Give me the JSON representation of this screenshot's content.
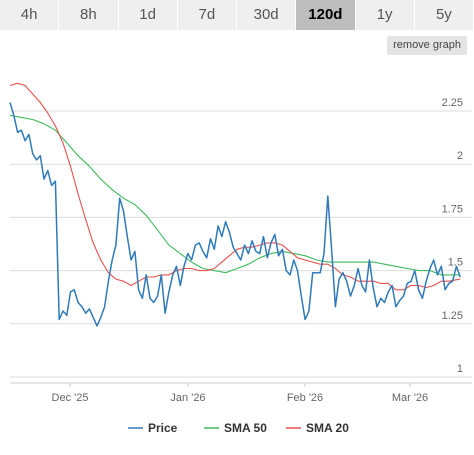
{
  "tabs": [
    {
      "label": "4h",
      "active": false
    },
    {
      "label": "8h",
      "active": false
    },
    {
      "label": "1d",
      "active": false
    },
    {
      "label": "7d",
      "active": false
    },
    {
      "label": "30d",
      "active": false
    },
    {
      "label": "120d",
      "active": true
    },
    {
      "label": "1y",
      "active": false
    },
    {
      "label": "5y",
      "active": false
    }
  ],
  "remove_graph_label": "remove graph",
  "chart_data": {
    "type": "line",
    "title": "",
    "xlabel": "",
    "ylabel": "",
    "x_ticks": [
      "Dec '25",
      "Jan '26",
      "Feb '26",
      "Mar '26"
    ],
    "y_ticks": [
      "1",
      "1.25",
      "1.5",
      "1.75",
      "2",
      "2.25"
    ],
    "ylim": [
      1,
      2.4
    ],
    "x_range_days": [
      0,
      120
    ],
    "grid": "horizontal",
    "legend_position": "bottom",
    "series": [
      {
        "name": "Price",
        "color": "#2f7ab9",
        "points": [
          [
            0,
            2.29
          ],
          [
            1,
            2.23
          ],
          [
            2,
            2.15
          ],
          [
            3,
            2.16
          ],
          [
            4,
            2.11
          ],
          [
            5,
            2.14
          ],
          [
            6,
            2.05
          ],
          [
            7,
            2.02
          ],
          [
            8,
            2.04
          ],
          [
            9,
            1.93
          ],
          [
            10,
            1.97
          ],
          [
            11,
            1.9
          ],
          [
            12,
            1.92
          ],
          [
            13,
            1.27
          ],
          [
            14,
            1.31
          ],
          [
            15,
            1.29
          ],
          [
            16,
            1.4
          ],
          [
            17,
            1.41
          ],
          [
            18,
            1.35
          ],
          [
            19,
            1.33
          ],
          [
            20,
            1.3
          ],
          [
            21,
            1.32
          ],
          [
            22,
            1.28
          ],
          [
            23,
            1.24
          ],
          [
            24,
            1.28
          ],
          [
            25,
            1.33
          ],
          [
            26,
            1.45
          ],
          [
            27,
            1.55
          ],
          [
            28,
            1.62
          ],
          [
            29,
            1.84
          ],
          [
            30,
            1.78
          ],
          [
            31,
            1.66
          ],
          [
            32,
            1.55
          ],
          [
            33,
            1.59
          ],
          [
            34,
            1.41
          ],
          [
            35,
            1.37
          ],
          [
            36,
            1.48
          ],
          [
            37,
            1.37
          ],
          [
            38,
            1.35
          ],
          [
            39,
            1.38
          ],
          [
            40,
            1.48
          ],
          [
            41,
            1.3
          ],
          [
            42,
            1.4
          ],
          [
            43,
            1.48
          ],
          [
            44,
            1.52
          ],
          [
            45,
            1.43
          ],
          [
            46,
            1.52
          ],
          [
            47,
            1.58
          ],
          [
            48,
            1.55
          ],
          [
            49,
            1.62
          ],
          [
            50,
            1.63
          ],
          [
            51,
            1.59
          ],
          [
            52,
            1.56
          ],
          [
            53,
            1.65
          ],
          [
            54,
            1.6
          ],
          [
            55,
            1.71
          ],
          [
            56,
            1.66
          ],
          [
            57,
            1.73
          ],
          [
            58,
            1.68
          ],
          [
            59,
            1.61
          ],
          [
            60,
            1.58
          ],
          [
            61,
            1.55
          ],
          [
            62,
            1.62
          ],
          [
            63,
            1.58
          ],
          [
            64,
            1.64
          ],
          [
            65,
            1.59
          ],
          [
            66,
            1.58
          ],
          [
            67,
            1.66
          ],
          [
            68,
            1.56
          ],
          [
            69,
            1.63
          ],
          [
            70,
            1.67
          ],
          [
            71,
            1.57
          ],
          [
            72,
            1.6
          ],
          [
            73,
            1.5
          ],
          [
            74,
            1.48
          ],
          [
            75,
            1.55
          ],
          [
            76,
            1.5
          ],
          [
            77,
            1.38
          ],
          [
            78,
            1.27
          ],
          [
            79,
            1.31
          ],
          [
            80,
            1.49
          ],
          [
            81,
            1.49
          ],
          [
            82,
            1.49
          ],
          [
            83,
            1.58
          ],
          [
            84,
            1.85
          ],
          [
            85,
            1.6
          ],
          [
            86,
            1.33
          ],
          [
            87,
            1.46
          ],
          [
            88,
            1.49
          ],
          [
            89,
            1.45
          ],
          [
            90,
            1.38
          ],
          [
            91,
            1.43
          ],
          [
            92,
            1.51
          ],
          [
            93,
            1.43
          ],
          [
            94,
            1.4
          ],
          [
            95,
            1.55
          ],
          [
            96,
            1.42
          ],
          [
            97,
            1.33
          ],
          [
            98,
            1.37
          ],
          [
            99,
            1.35
          ],
          [
            100,
            1.4
          ],
          [
            101,
            1.43
          ],
          [
            102,
            1.33
          ],
          [
            103,
            1.36
          ],
          [
            104,
            1.38
          ],
          [
            105,
            1.44
          ],
          [
            106,
            1.45
          ],
          [
            107,
            1.5
          ],
          [
            108,
            1.41
          ],
          [
            109,
            1.37
          ],
          [
            110,
            1.45
          ],
          [
            111,
            1.51
          ],
          [
            112,
            1.55
          ],
          [
            113,
            1.48
          ],
          [
            114,
            1.52
          ],
          [
            115,
            1.41
          ],
          [
            116,
            1.44
          ],
          [
            117,
            1.45
          ],
          [
            118,
            1.52
          ],
          [
            119,
            1.47
          ]
        ]
      },
      {
        "name": "SMA 50",
        "color": "#3dbb5e",
        "points": [
          [
            0,
            2.23
          ],
          [
            3,
            2.22
          ],
          [
            6,
            2.21
          ],
          [
            9,
            2.19
          ],
          [
            12,
            2.16
          ],
          [
            15,
            2.1
          ],
          [
            18,
            2.04
          ],
          [
            21,
            1.99
          ],
          [
            24,
            1.93
          ],
          [
            27,
            1.88
          ],
          [
            30,
            1.84
          ],
          [
            33,
            1.81
          ],
          [
            36,
            1.76
          ],
          [
            39,
            1.69
          ],
          [
            42,
            1.62
          ],
          [
            45,
            1.58
          ],
          [
            48,
            1.54
          ],
          [
            51,
            1.51
          ],
          [
            54,
            1.5
          ],
          [
            57,
            1.49
          ],
          [
            60,
            1.51
          ],
          [
            63,
            1.53
          ],
          [
            66,
            1.56
          ],
          [
            69,
            1.58
          ],
          [
            72,
            1.59
          ],
          [
            75,
            1.58
          ],
          [
            78,
            1.57
          ],
          [
            81,
            1.55
          ],
          [
            84,
            1.54
          ],
          [
            87,
            1.54
          ],
          [
            90,
            1.54
          ],
          [
            93,
            1.54
          ],
          [
            96,
            1.54
          ],
          [
            99,
            1.53
          ],
          [
            102,
            1.52
          ],
          [
            105,
            1.51
          ],
          [
            108,
            1.5
          ],
          [
            111,
            1.5
          ],
          [
            114,
            1.48
          ],
          [
            117,
            1.48
          ],
          [
            119,
            1.48
          ]
        ]
      },
      {
        "name": "SMA 20",
        "color": "#e8514c",
        "points": [
          [
            0,
            2.37
          ],
          [
            2,
            2.38
          ],
          [
            4,
            2.37
          ],
          [
            6,
            2.33
          ],
          [
            8,
            2.29
          ],
          [
            10,
            2.24
          ],
          [
            12,
            2.18
          ],
          [
            14,
            2.1
          ],
          [
            16,
            1.99
          ],
          [
            18,
            1.86
          ],
          [
            20,
            1.74
          ],
          [
            22,
            1.63
          ],
          [
            24,
            1.55
          ],
          [
            26,
            1.49
          ],
          [
            28,
            1.46
          ],
          [
            30,
            1.45
          ],
          [
            32,
            1.43
          ],
          [
            34,
            1.45
          ],
          [
            36,
            1.47
          ],
          [
            38,
            1.47
          ],
          [
            40,
            1.48
          ],
          [
            42,
            1.48
          ],
          [
            44,
            1.5
          ],
          [
            46,
            1.51
          ],
          [
            48,
            1.51
          ],
          [
            50,
            1.5
          ],
          [
            52,
            1.5
          ],
          [
            54,
            1.51
          ],
          [
            56,
            1.54
          ],
          [
            58,
            1.57
          ],
          [
            60,
            1.6
          ],
          [
            62,
            1.61
          ],
          [
            64,
            1.61
          ],
          [
            66,
            1.62
          ],
          [
            68,
            1.63
          ],
          [
            70,
            1.63
          ],
          [
            72,
            1.62
          ],
          [
            74,
            1.59
          ],
          [
            76,
            1.56
          ],
          [
            78,
            1.55
          ],
          [
            80,
            1.54
          ],
          [
            82,
            1.53
          ],
          [
            84,
            1.53
          ],
          [
            86,
            1.51
          ],
          [
            88,
            1.48
          ],
          [
            90,
            1.47
          ],
          [
            92,
            1.45
          ],
          [
            94,
            1.45
          ],
          [
            96,
            1.45
          ],
          [
            98,
            1.44
          ],
          [
            100,
            1.44
          ],
          [
            102,
            1.41
          ],
          [
            104,
            1.41
          ],
          [
            106,
            1.43
          ],
          [
            108,
            1.43
          ],
          [
            110,
            1.42
          ],
          [
            112,
            1.43
          ],
          [
            114,
            1.45
          ],
          [
            116,
            1.45
          ],
          [
            119,
            1.46
          ]
        ]
      }
    ]
  }
}
